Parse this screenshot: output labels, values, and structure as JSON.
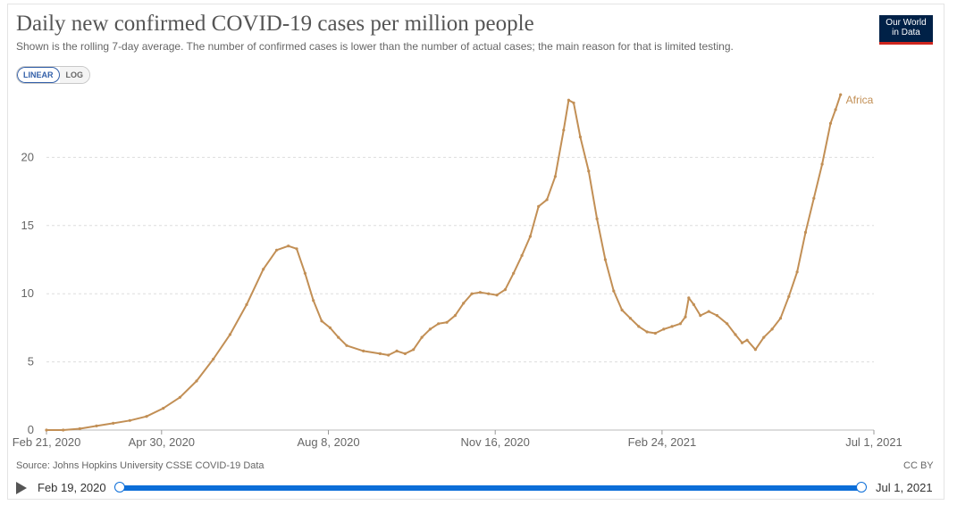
{
  "header": {
    "title": "Daily new confirmed COVID-19 cases per million people",
    "subtitle": "Shown is the rolling 7-day average. The number of confirmed cases is lower than the number of actual cases; the main reason for that is limited testing.",
    "logo_line1": "Our World",
    "logo_line2": "in Data"
  },
  "controls": {
    "linear_label": "LINEAR",
    "log_label": "LOG",
    "selected": "LINEAR"
  },
  "footer": {
    "source": "Source: Johns Hopkins University CSSE COVID-19 Data",
    "license": "CC BY"
  },
  "timeline": {
    "start_label": "Feb 19, 2020",
    "end_label": "Jul 1, 2021"
  },
  "colors": {
    "series": "#c28f55",
    "grid": "#dddddd",
    "accent": "#0c6ed8",
    "logo_bg": "#002147",
    "logo_bar": "#ce261e"
  },
  "chart_data": {
    "type": "line",
    "title": "Daily new confirmed COVID-19 cases per million people",
    "xlabel": "",
    "ylabel": "",
    "ylim": [
      0,
      25
    ],
    "yticks": [
      0,
      5,
      10,
      15,
      20
    ],
    "xlim_days": [
      0,
      496
    ],
    "xticks": [
      {
        "day": 0,
        "label": "Feb 21, 2020"
      },
      {
        "day": 69,
        "label": "Apr 30, 2020"
      },
      {
        "day": 169,
        "label": "Aug 8, 2020"
      },
      {
        "day": 269,
        "label": "Nov 16, 2020"
      },
      {
        "day": 369,
        "label": "Feb 24, 2021"
      },
      {
        "day": 496,
        "label": "Jul 1, 2021"
      }
    ],
    "grid": true,
    "series": [
      {
        "name": "Africa",
        "points": [
          [
            0,
            0.0
          ],
          [
            10,
            0.0
          ],
          [
            20,
            0.1
          ],
          [
            30,
            0.3
          ],
          [
            40,
            0.5
          ],
          [
            50,
            0.7
          ],
          [
            60,
            1.0
          ],
          [
            70,
            1.6
          ],
          [
            80,
            2.4
          ],
          [
            90,
            3.6
          ],
          [
            100,
            5.2
          ],
          [
            110,
            7.0
          ],
          [
            120,
            9.2
          ],
          [
            130,
            11.8
          ],
          [
            138,
            13.2
          ],
          [
            145,
            13.5
          ],
          [
            150,
            13.3
          ],
          [
            155,
            11.5
          ],
          [
            160,
            9.5
          ],
          [
            165,
            8.0
          ],
          [
            170,
            7.5
          ],
          [
            175,
            6.8
          ],
          [
            180,
            6.2
          ],
          [
            190,
            5.8
          ],
          [
            200,
            5.6
          ],
          [
            205,
            5.5
          ],
          [
            210,
            5.8
          ],
          [
            215,
            5.6
          ],
          [
            220,
            5.9
          ],
          [
            225,
            6.8
          ],
          [
            230,
            7.4
          ],
          [
            235,
            7.8
          ],
          [
            240,
            7.9
          ],
          [
            245,
            8.4
          ],
          [
            250,
            9.3
          ],
          [
            255,
            10.0
          ],
          [
            260,
            10.1
          ],
          [
            265,
            10.0
          ],
          [
            270,
            9.9
          ],
          [
            275,
            10.3
          ],
          [
            280,
            11.5
          ],
          [
            285,
            12.8
          ],
          [
            290,
            14.2
          ],
          [
            295,
            16.4
          ],
          [
            300,
            16.9
          ],
          [
            305,
            18.6
          ],
          [
            310,
            22.0
          ],
          [
            313,
            24.2
          ],
          [
            316,
            24.0
          ],
          [
            320,
            21.5
          ],
          [
            325,
            19.0
          ],
          [
            330,
            15.5
          ],
          [
            335,
            12.5
          ],
          [
            340,
            10.2
          ],
          [
            345,
            8.8
          ],
          [
            350,
            8.2
          ],
          [
            355,
            7.6
          ],
          [
            360,
            7.2
          ],
          [
            365,
            7.1
          ],
          [
            370,
            7.4
          ],
          [
            375,
            7.6
          ],
          [
            380,
            7.8
          ],
          [
            383,
            8.3
          ],
          [
            385,
            9.7
          ],
          [
            388,
            9.2
          ],
          [
            392,
            8.4
          ],
          [
            397,
            8.7
          ],
          [
            402,
            8.4
          ],
          [
            408,
            7.8
          ],
          [
            413,
            7.0
          ],
          [
            417,
            6.4
          ],
          [
            420,
            6.6
          ],
          [
            425,
            5.9
          ],
          [
            430,
            6.8
          ],
          [
            435,
            7.4
          ],
          [
            440,
            8.2
          ],
          [
            445,
            9.8
          ],
          [
            450,
            11.6
          ],
          [
            455,
            14.5
          ],
          [
            460,
            17.0
          ],
          [
            465,
            19.5
          ],
          [
            470,
            22.5
          ],
          [
            473,
            23.5
          ],
          [
            476,
            24.6
          ]
        ]
      }
    ]
  }
}
